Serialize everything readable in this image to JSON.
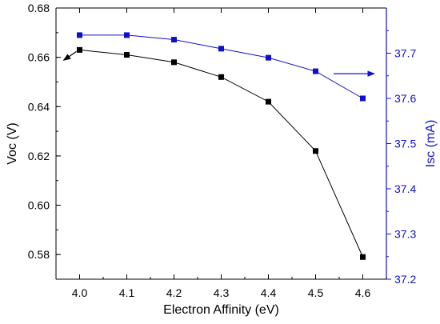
{
  "chart_data": {
    "type": "line",
    "xlabel": "Electron Affinity (eV)",
    "ylabel_left": "Voc (V)",
    "ylabel_right": "Isc (mA)",
    "x": [
      4.0,
      4.1,
      4.2,
      4.3,
      4.4,
      4.5,
      4.6
    ],
    "xlim": [
      3.95,
      4.65
    ],
    "ylim_left": [
      0.57,
      0.68
    ],
    "ylim_right": [
      37.2,
      37.8
    ],
    "x_ticks": [
      "4.0",
      "4.1",
      "4.2",
      "4.3",
      "4.4",
      "4.5",
      "4.6"
    ],
    "y_left_ticks": [
      "0.58",
      "0.60",
      "0.62",
      "0.64",
      "0.66",
      "0.68"
    ],
    "y_right_ticks": [
      "37.2",
      "37.3",
      "37.4",
      "37.5",
      "37.6",
      "37.7"
    ],
    "series": [
      {
        "axis": "left",
        "color": "#000000",
        "marker": "square",
        "values": [
          0.663,
          0.661,
          0.658,
          0.652,
          0.642,
          0.622,
          0.579
        ]
      },
      {
        "axis": "right",
        "color": "#1010cc",
        "marker": "square",
        "values": [
          37.74,
          37.74,
          37.73,
          37.71,
          37.69,
          37.66,
          37.6
        ]
      }
    ],
    "annotations": [
      {
        "type": "arrow",
        "direction": "left",
        "series": 0
      },
      {
        "type": "arrow",
        "direction": "right",
        "series": 1
      }
    ],
    "grid": false
  }
}
